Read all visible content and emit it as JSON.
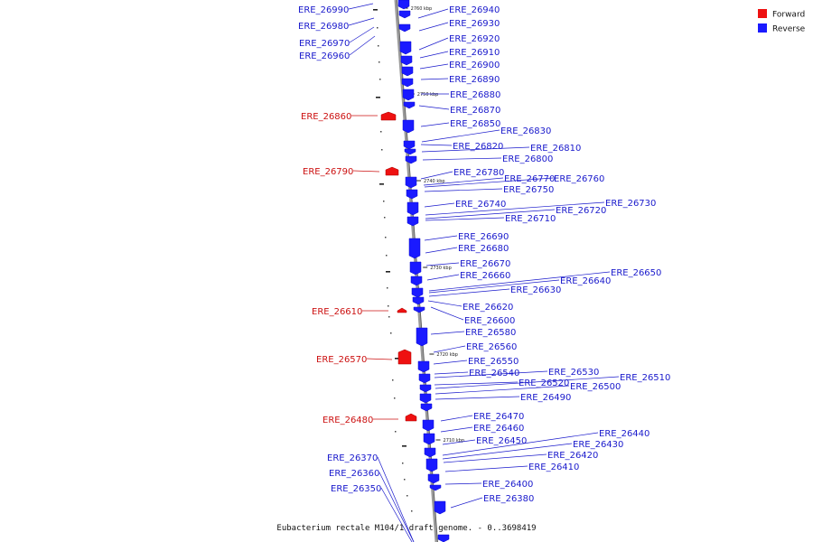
{
  "legend": {
    "forward_label": "Forward",
    "reverse_label": "Reverse",
    "forward_color": "#ee1111",
    "reverse_color": "#1a1aff"
  },
  "caption": "Eubacterium rectale M104/1 draft genome. - 0..3698419",
  "ticks": [
    "2760 kbp",
    "2750 kbp",
    "2740 kbp",
    "2730 kbp",
    "2720 kbp",
    "2710 kbp"
  ],
  "genes": [
    {
      "label": "ERE_26990",
      "strand": "reverse"
    },
    {
      "label": "ERE_26980",
      "strand": "reverse"
    },
    {
      "label": "ERE_26970",
      "strand": "reverse"
    },
    {
      "label": "ERE_26960",
      "strand": "reverse"
    },
    {
      "label": "ERE_26940",
      "strand": "reverse"
    },
    {
      "label": "ERE_26930",
      "strand": "reverse"
    },
    {
      "label": "ERE_26920",
      "strand": "reverse"
    },
    {
      "label": "ERE_26910",
      "strand": "reverse"
    },
    {
      "label": "ERE_26900",
      "strand": "reverse"
    },
    {
      "label": "ERE_26890",
      "strand": "reverse"
    },
    {
      "label": "ERE_26880",
      "strand": "reverse"
    },
    {
      "label": "ERE_26870",
      "strand": "reverse"
    },
    {
      "label": "ERE_26860",
      "strand": "forward"
    },
    {
      "label": "ERE_26850",
      "strand": "reverse"
    },
    {
      "label": "ERE_26830",
      "strand": "reverse"
    },
    {
      "label": "ERE_26820",
      "strand": "reverse"
    },
    {
      "label": "ERE_26810",
      "strand": "reverse"
    },
    {
      "label": "ERE_26800",
      "strand": "reverse"
    },
    {
      "label": "ERE_26790",
      "strand": "forward"
    },
    {
      "label": "ERE_26780",
      "strand": "reverse"
    },
    {
      "label": "ERE_26770",
      "strand": "reverse"
    },
    {
      "label": "ERE_26760",
      "strand": "reverse"
    },
    {
      "label": "ERE_26750",
      "strand": "reverse"
    },
    {
      "label": "ERE_26740",
      "strand": "reverse"
    },
    {
      "label": "ERE_26730",
      "strand": "reverse"
    },
    {
      "label": "ERE_26720",
      "strand": "reverse"
    },
    {
      "label": "ERE_26710",
      "strand": "reverse"
    },
    {
      "label": "ERE_26690",
      "strand": "reverse"
    },
    {
      "label": "ERE_26680",
      "strand": "reverse"
    },
    {
      "label": "ERE_26670",
      "strand": "reverse"
    },
    {
      "label": "ERE_26660",
      "strand": "reverse"
    },
    {
      "label": "ERE_26650",
      "strand": "reverse"
    },
    {
      "label": "ERE_26640",
      "strand": "reverse"
    },
    {
      "label": "ERE_26630",
      "strand": "reverse"
    },
    {
      "label": "ERE_26620",
      "strand": "reverse"
    },
    {
      "label": "ERE_26610",
      "strand": "forward"
    },
    {
      "label": "ERE_26600",
      "strand": "reverse"
    },
    {
      "label": "ERE_26580",
      "strand": "reverse"
    },
    {
      "label": "ERE_26570",
      "strand": "forward"
    },
    {
      "label": "ERE_26560",
      "strand": "reverse"
    },
    {
      "label": "ERE_26550",
      "strand": "reverse"
    },
    {
      "label": "ERE_26540",
      "strand": "reverse"
    },
    {
      "label": "ERE_26530",
      "strand": "reverse"
    },
    {
      "label": "ERE_26520",
      "strand": "reverse"
    },
    {
      "label": "ERE_26510",
      "strand": "reverse"
    },
    {
      "label": "ERE_26500",
      "strand": "reverse"
    },
    {
      "label": "ERE_26490",
      "strand": "reverse"
    },
    {
      "label": "ERE_26480",
      "strand": "forward"
    },
    {
      "label": "ERE_26470",
      "strand": "reverse"
    },
    {
      "label": "ERE_26460",
      "strand": "reverse"
    },
    {
      "label": "ERE_26450",
      "strand": "reverse"
    },
    {
      "label": "ERE_26440",
      "strand": "reverse"
    },
    {
      "label": "ERE_26430",
      "strand": "reverse"
    },
    {
      "label": "ERE_26420",
      "strand": "reverse"
    },
    {
      "label": "ERE_26410",
      "strand": "reverse"
    },
    {
      "label": "ERE_26400",
      "strand": "reverse"
    },
    {
      "label": "ERE_26380",
      "strand": "reverse"
    },
    {
      "label": "ERE_26370",
      "strand": "reverse"
    },
    {
      "label": "ERE_26360",
      "strand": "reverse"
    },
    {
      "label": "ERE_26350",
      "strand": "reverse"
    }
  ]
}
